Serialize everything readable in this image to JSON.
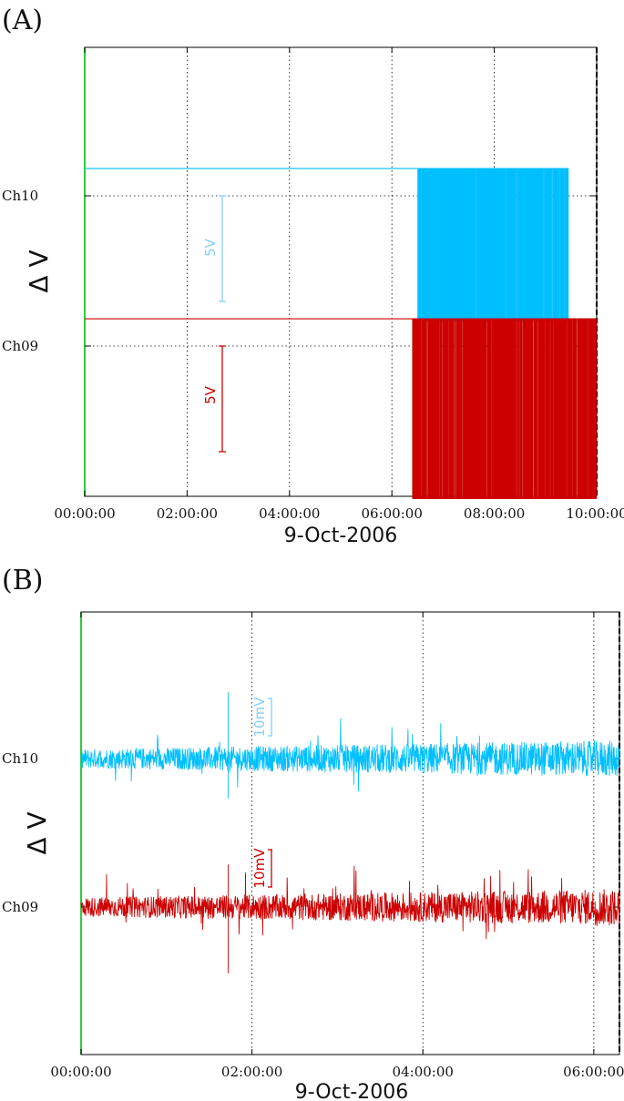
{
  "chart_data": [
    {
      "type": "line",
      "panel": "(A)",
      "xlabel": "9-Oct-2006",
      "ylabel": "Δ V",
      "xticks": [
        "00:00:00",
        "02:00:00",
        "04:00:00",
        "06:00:00",
        "08:00:00",
        "10:00:00"
      ],
      "xlim_hours": [
        0,
        10
      ],
      "grid": true,
      "channels": [
        "Ch10",
        "Ch09"
      ],
      "series": [
        {
          "name": "Ch10",
          "color": "#00bfff",
          "baseline_v": 0,
          "high_v": 0.5,
          "low_v": -2.3,
          "segments": [
            {
              "from_h": 0.0,
              "to_h": 6.5,
              "level": "high"
            },
            {
              "from_h": 6.5,
              "to_h": 9.45,
              "level": "switching"
            },
            {
              "from_h": 9.45,
              "to_h": 10.0,
              "level": "low"
            }
          ]
        },
        {
          "name": "Ch09",
          "color": "#cc0000",
          "baseline_v": 0,
          "high_v": 0.5,
          "low_v": -2.8,
          "segments": [
            {
              "from_h": 0.0,
              "to_h": 6.4,
              "level": "high"
            },
            {
              "from_h": 6.4,
              "to_h": 10.0,
              "level": "switching"
            }
          ]
        }
      ],
      "scale_bars": [
        {
          "label": "5V",
          "color": "#87cefa",
          "channel": "Ch10"
        },
        {
          "label": "5V",
          "color": "#cc0000",
          "channel": "Ch09"
        }
      ]
    },
    {
      "type": "line",
      "panel": "(B)",
      "xlabel": "9-Oct-2006",
      "ylabel": "Δ V",
      "xticks": [
        "00:00:00",
        "02:00:00",
        "04:00:00",
        "06:00:00"
      ],
      "xlim_hours": [
        0,
        6.3
      ],
      "grid": true,
      "channels": [
        "Ch10",
        "Ch09"
      ],
      "series": [
        {
          "name": "Ch10",
          "color": "#00bfff",
          "baseline_mv": 0,
          "noise_mv": 2,
          "spike_mv": [
            -12,
            14
          ]
        },
        {
          "name": "Ch09",
          "color": "#cc0000",
          "baseline_mv": 0,
          "noise_mv": 2,
          "spike_mv": [
            -14,
            10
          ]
        }
      ],
      "scale_bars": [
        {
          "label": "10mV",
          "color": "#87cefa",
          "channel": "Ch10"
        },
        {
          "label": "10mV",
          "color": "#cc0000",
          "channel": "Ch09"
        }
      ]
    }
  ]
}
